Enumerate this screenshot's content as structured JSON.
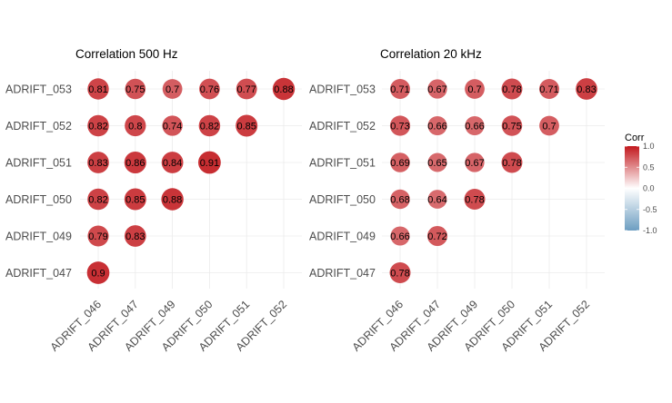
{
  "chart_data": [
    {
      "type": "heatmap",
      "title": "Correlation 500 Hz",
      "x_categories": [
        "ADRIFT_046",
        "ADRIFT_047",
        "ADRIFT_049",
        "ADRIFT_050",
        "ADRIFT_051",
        "ADRIFT_052"
      ],
      "y_categories": [
        "ADRIFT_053",
        "ADRIFT_052",
        "ADRIFT_051",
        "ADRIFT_050",
        "ADRIFT_049",
        "ADRIFT_047"
      ],
      "cells": [
        {
          "x": "ADRIFT_046",
          "y": "ADRIFT_053",
          "value": 0.81,
          "label": "0.81"
        },
        {
          "x": "ADRIFT_047",
          "y": "ADRIFT_053",
          "value": 0.75,
          "label": "0.75"
        },
        {
          "x": "ADRIFT_049",
          "y": "ADRIFT_053",
          "value": 0.7,
          "label": "0.7"
        },
        {
          "x": "ADRIFT_050",
          "y": "ADRIFT_053",
          "value": 0.76,
          "label": "0.76"
        },
        {
          "x": "ADRIFT_051",
          "y": "ADRIFT_053",
          "value": 0.77,
          "label": "0.77"
        },
        {
          "x": "ADRIFT_052",
          "y": "ADRIFT_053",
          "value": 0.88,
          "label": "0.88"
        },
        {
          "x": "ADRIFT_046",
          "y": "ADRIFT_052",
          "value": 0.82,
          "label": "0.82"
        },
        {
          "x": "ADRIFT_047",
          "y": "ADRIFT_052",
          "value": 0.8,
          "label": "0.8"
        },
        {
          "x": "ADRIFT_049",
          "y": "ADRIFT_052",
          "value": 0.74,
          "label": "0.74"
        },
        {
          "x": "ADRIFT_050",
          "y": "ADRIFT_052",
          "value": 0.82,
          "label": "0.82"
        },
        {
          "x": "ADRIFT_051",
          "y": "ADRIFT_052",
          "value": 0.85,
          "label": "0.85"
        },
        {
          "x": "ADRIFT_046",
          "y": "ADRIFT_051",
          "value": 0.83,
          "label": "0.83"
        },
        {
          "x": "ADRIFT_047",
          "y": "ADRIFT_051",
          "value": 0.86,
          "label": "0.86"
        },
        {
          "x": "ADRIFT_049",
          "y": "ADRIFT_051",
          "value": 0.84,
          "label": "0.84"
        },
        {
          "x": "ADRIFT_050",
          "y": "ADRIFT_051",
          "value": 0.91,
          "label": "0.91"
        },
        {
          "x": "ADRIFT_046",
          "y": "ADRIFT_050",
          "value": 0.82,
          "label": "0.82"
        },
        {
          "x": "ADRIFT_047",
          "y": "ADRIFT_050",
          "value": 0.85,
          "label": "0.85"
        },
        {
          "x": "ADRIFT_049",
          "y": "ADRIFT_050",
          "value": 0.88,
          "label": "0.88"
        },
        {
          "x": "ADRIFT_046",
          "y": "ADRIFT_049",
          "value": 0.79,
          "label": "0.79"
        },
        {
          "x": "ADRIFT_047",
          "y": "ADRIFT_049",
          "value": 0.83,
          "label": "0.83"
        },
        {
          "x": "ADRIFT_046",
          "y": "ADRIFT_047",
          "value": 0.9,
          "label": "0.9"
        }
      ]
    },
    {
      "type": "heatmap",
      "title": "Correlation 20 kHz",
      "x_categories": [
        "ADRIFT_046",
        "ADRIFT_047",
        "ADRIFT_049",
        "ADRIFT_050",
        "ADRIFT_051",
        "ADRIFT_052"
      ],
      "y_categories": [
        "ADRIFT_053",
        "ADRIFT_052",
        "ADRIFT_051",
        "ADRIFT_050",
        "ADRIFT_049",
        "ADRIFT_047"
      ],
      "cells": [
        {
          "x": "ADRIFT_046",
          "y": "ADRIFT_053",
          "value": 0.71,
          "label": "0.71"
        },
        {
          "x": "ADRIFT_047",
          "y": "ADRIFT_053",
          "value": 0.67,
          "label": "0.67"
        },
        {
          "x": "ADRIFT_049",
          "y": "ADRIFT_053",
          "value": 0.7,
          "label": "0.7"
        },
        {
          "x": "ADRIFT_050",
          "y": "ADRIFT_053",
          "value": 0.78,
          "label": "0.78"
        },
        {
          "x": "ADRIFT_051",
          "y": "ADRIFT_053",
          "value": 0.71,
          "label": "0.71"
        },
        {
          "x": "ADRIFT_052",
          "y": "ADRIFT_053",
          "value": 0.83,
          "label": "0.83"
        },
        {
          "x": "ADRIFT_046",
          "y": "ADRIFT_052",
          "value": 0.73,
          "label": "0.73"
        },
        {
          "x": "ADRIFT_047",
          "y": "ADRIFT_052",
          "value": 0.66,
          "label": "0.66"
        },
        {
          "x": "ADRIFT_049",
          "y": "ADRIFT_052",
          "value": 0.66,
          "label": "0.66"
        },
        {
          "x": "ADRIFT_050",
          "y": "ADRIFT_052",
          "value": 0.75,
          "label": "0.75"
        },
        {
          "x": "ADRIFT_051",
          "y": "ADRIFT_052",
          "value": 0.7,
          "label": "0.7"
        },
        {
          "x": "ADRIFT_046",
          "y": "ADRIFT_051",
          "value": 0.69,
          "label": "0.69"
        },
        {
          "x": "ADRIFT_047",
          "y": "ADRIFT_051",
          "value": 0.65,
          "label": "0.65"
        },
        {
          "x": "ADRIFT_049",
          "y": "ADRIFT_051",
          "value": 0.67,
          "label": "0.67"
        },
        {
          "x": "ADRIFT_050",
          "y": "ADRIFT_051",
          "value": 0.78,
          "label": "0.78"
        },
        {
          "x": "ADRIFT_046",
          "y": "ADRIFT_050",
          "value": 0.68,
          "label": "0.68"
        },
        {
          "x": "ADRIFT_047",
          "y": "ADRIFT_050",
          "value": 0.64,
          "label": "0.64"
        },
        {
          "x": "ADRIFT_049",
          "y": "ADRIFT_050",
          "value": 0.78,
          "label": "0.78"
        },
        {
          "x": "ADRIFT_046",
          "y": "ADRIFT_049",
          "value": 0.66,
          "label": "0.66"
        },
        {
          "x": "ADRIFT_047",
          "y": "ADRIFT_049",
          "value": 0.72,
          "label": "0.72"
        },
        {
          "x": "ADRIFT_046",
          "y": "ADRIFT_047",
          "value": 0.78,
          "label": "0.78"
        }
      ]
    }
  ],
  "legend": {
    "title": "Corr",
    "ticks": [
      "1.0",
      "0.5",
      "0.0",
      "-0.5",
      "-1.0"
    ],
    "range": [
      -1.0,
      1.0
    ],
    "colors": {
      "low": "#6d9ec1",
      "mid": "#ffffff",
      "high": "#c2181d"
    }
  },
  "style": {
    "grid": true,
    "marker": "circle sized by absolute value, filled by value",
    "legend_position": "right"
  }
}
